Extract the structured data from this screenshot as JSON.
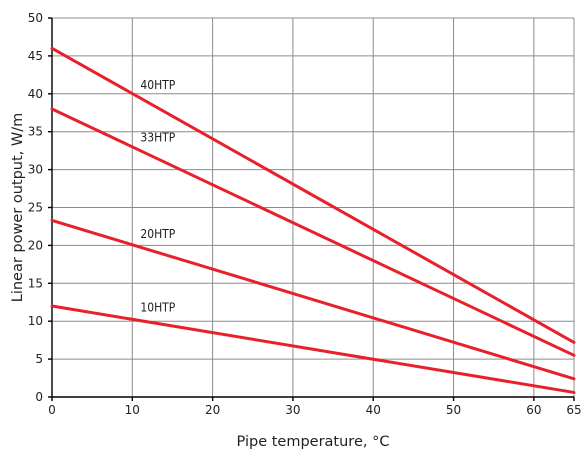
{
  "chart_data": {
    "type": "line",
    "title": "",
    "xlabel": "Pipe temperature, °C",
    "ylabel": "Linear power output, W/m",
    "xlim": [
      0,
      65
    ],
    "ylim": [
      0,
      50
    ],
    "xticks": [
      0,
      10,
      20,
      30,
      40,
      50,
      60,
      65
    ],
    "yticks": [
      0,
      5,
      10,
      15,
      20,
      25,
      30,
      35,
      40,
      45,
      50
    ],
    "grid": true,
    "legend": "inline labels",
    "series": [
      {
        "name": "40HTP",
        "x": [
          0,
          65
        ],
        "y": [
          46,
          7.2
        ],
        "color": "#e8202a"
      },
      {
        "name": "33HTP",
        "x": [
          0,
          65
        ],
        "y": [
          38,
          5.5
        ],
        "color": "#e8202a"
      },
      {
        "name": "20HTP",
        "x": [
          0,
          65
        ],
        "y": [
          23.3,
          2.4
        ],
        "color": "#e8202a"
      },
      {
        "name": "10HTP",
        "x": [
          0,
          65
        ],
        "y": [
          12,
          0.6
        ],
        "color": "#e8202a"
      }
    ]
  }
}
